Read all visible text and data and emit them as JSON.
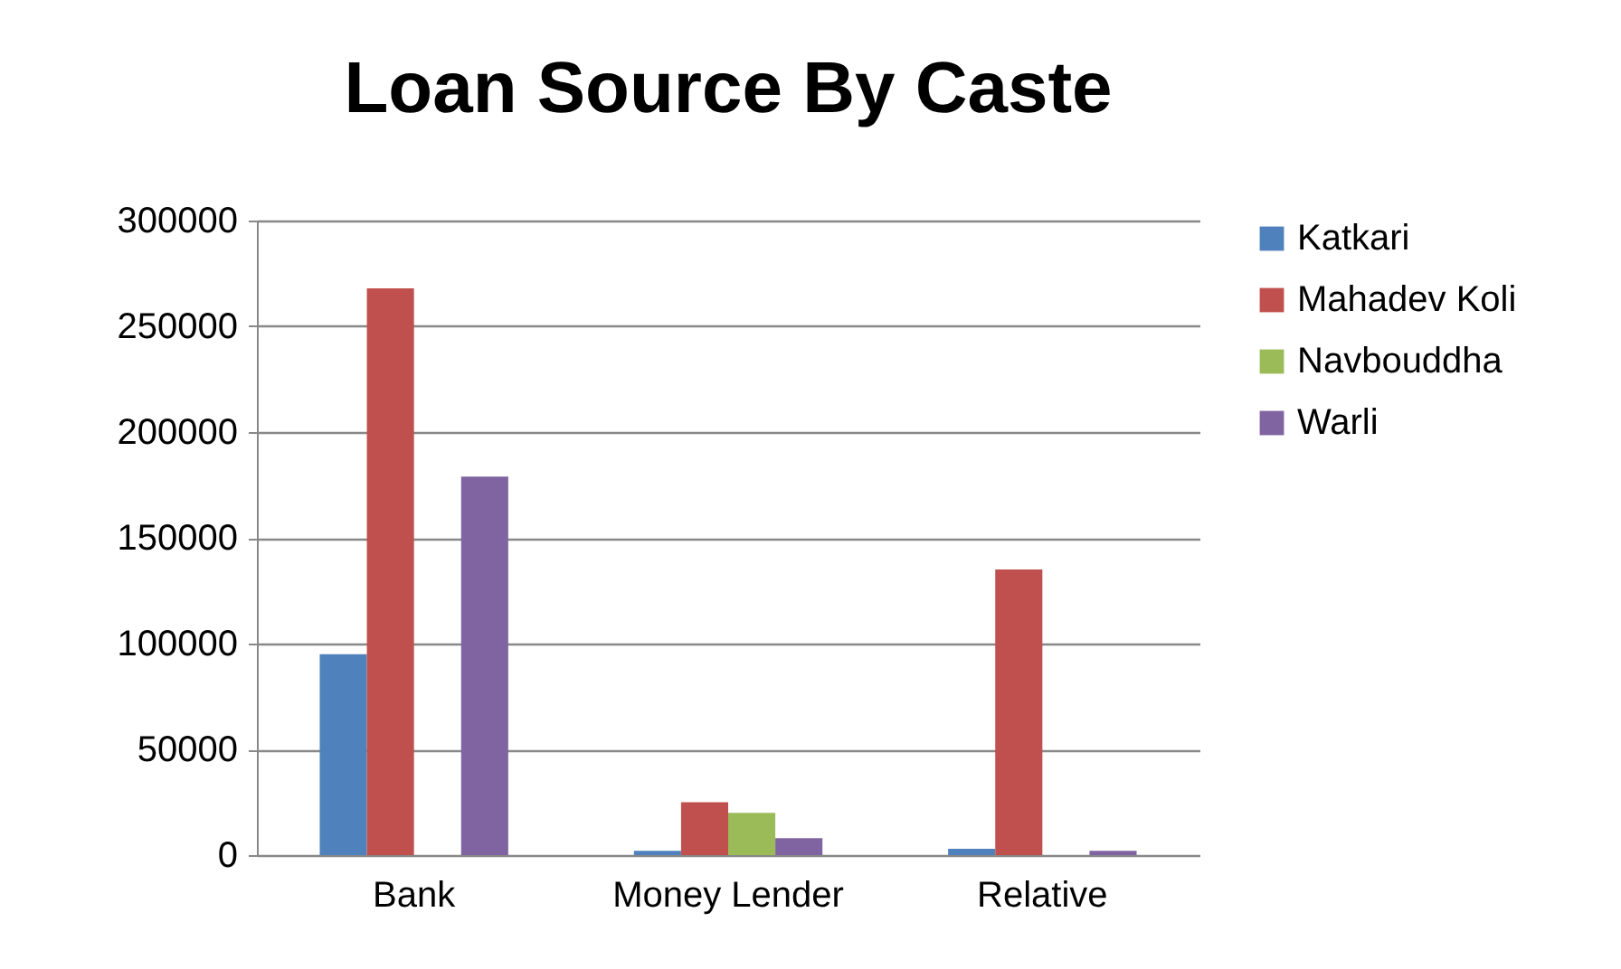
{
  "chart_data": {
    "type": "bar",
    "title": "Loan Source By Caste",
    "categories": [
      "Bank",
      "Money Lender",
      "Relative"
    ],
    "series": [
      {
        "name": "Katkari",
        "color": "#4f81bd",
        "values": [
          95000,
          2000,
          3000
        ]
      },
      {
        "name": "Mahadev Koli",
        "color": "#c0504d",
        "values": [
          268000,
          25000,
          135000
        ]
      },
      {
        "name": "Navbouddha",
        "color": "#9bbb59",
        "values": [
          0,
          20000,
          0
        ]
      },
      {
        "name": "Warli",
        "color": "#8064a2",
        "values": [
          179000,
          8000,
          2000
        ]
      }
    ],
    "ylim": [
      0,
      300000
    ],
    "yticks": [
      0,
      50000,
      100000,
      150000,
      200000,
      250000,
      300000
    ],
    "grid": "y",
    "legend": "right"
  }
}
